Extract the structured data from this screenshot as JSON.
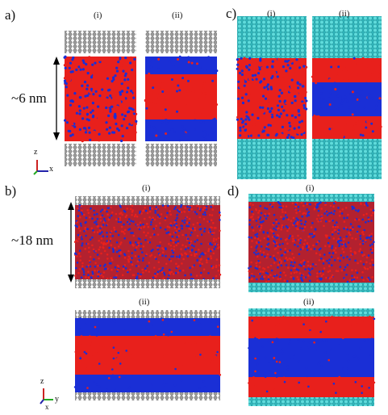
{
  "panels": {
    "a": {
      "label": "a)",
      "sub_i": "(i)",
      "sub_ii": "(ii)",
      "scale": "~6 nm"
    },
    "b": {
      "label": "b)",
      "sub_i": "(i)",
      "sub_ii": "(ii)",
      "scale": "~18 nm"
    },
    "c": {
      "label": "c)",
      "sub_i": "(i)",
      "sub_ii": "(ii)"
    },
    "d": {
      "label": "d)",
      "sub_i": "(i)",
      "sub_ii": "(ii)"
    }
  },
  "axes": {
    "a": {
      "z": "z",
      "x": "x"
    },
    "b": {
      "z": "z",
      "x": "x",
      "y": "y"
    }
  },
  "colors": {
    "red": "#e8201c",
    "blue": "#1a2fd6",
    "gray_wall": "#8a8a8a",
    "cyan_wall": "#3fc7c7",
    "scale_arrow": "#000000"
  }
}
